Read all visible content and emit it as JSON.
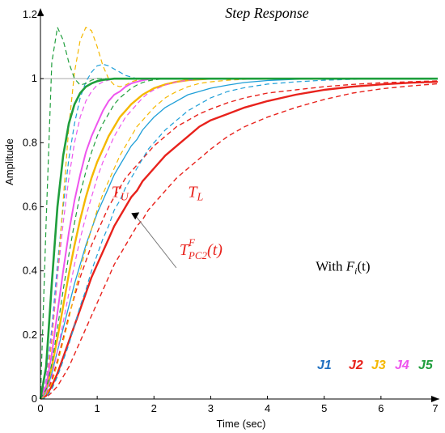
{
  "chart_data": {
    "type": "line",
    "title": "Step Response",
    "xlabel": "Time (sec)",
    "ylabel": "Amplitude",
    "xlim": [
      0,
      7
    ],
    "ylim": [
      0,
      1.2
    ],
    "xticks": [
      "0",
      "1",
      "2",
      "3",
      "4",
      "5",
      "6",
      "7"
    ],
    "yticks": [
      "0",
      "0.2",
      "0.4",
      "0.6",
      "0.8",
      "1",
      "1.2"
    ],
    "grid": false,
    "reference_line": 1,
    "annotations": {
      "tu": {
        "base": "T",
        "sub": "U",
        "x": 1.25,
        "y": 0.63
      },
      "tl": {
        "base": "T",
        "sub": "L",
        "x": 2.6,
        "y": 0.63
      },
      "tpc2": {
        "base": "T",
        "sup": "F",
        "sub": "PC2",
        "tail": "(t)",
        "x": 2.45,
        "y": 0.45,
        "arrow_to": [
          1.6,
          0.58
        ]
      },
      "with_fi": {
        "prefix": "With ",
        "base": "F",
        "sub": "i",
        "tail": "(t)",
        "x": 4.85,
        "y": 0.4
      }
    },
    "legend": {
      "position": "bottom-right",
      "entries": [
        {
          "label": "J1",
          "color": "#1f6fc0"
        },
        {
          "label": "J2",
          "color": "#e8221c"
        },
        {
          "label": "J3",
          "color": "#f5b800"
        },
        {
          "label": "J4",
          "color": "#ee55ee"
        },
        {
          "label": "J5",
          "color": "#1f9e3c"
        }
      ]
    },
    "x": [
      0,
      0.1,
      0.2,
      0.3,
      0.4,
      0.5,
      0.6,
      0.7,
      0.8,
      0.9,
      1.0,
      1.1,
      1.2,
      1.3,
      1.4,
      1.5,
      1.6,
      1.7,
      1.8,
      1.9,
      2.0,
      2.2,
      2.4,
      2.6,
      2.8,
      3.0,
      3.3,
      3.6,
      4.0,
      4.5,
      5.0,
      5.5,
      6.0,
      6.5,
      7.0
    ],
    "series": [
      {
        "color": "#e8221c",
        "style": "solid",
        "width": 2.4,
        "values": [
          0,
          0.01,
          0.04,
          0.08,
          0.13,
          0.18,
          0.23,
          0.28,
          0.33,
          0.38,
          0.42,
          0.46,
          0.5,
          0.54,
          0.57,
          0.6,
          0.63,
          0.65,
          0.68,
          0.7,
          0.72,
          0.76,
          0.79,
          0.82,
          0.85,
          0.87,
          0.89,
          0.91,
          0.93,
          0.95,
          0.965,
          0.975,
          0.982,
          0.987,
          0.99
        ]
      },
      {
        "color": "#e8221c",
        "style": "dashed",
        "width": 1.4,
        "values": [
          0,
          0.01,
          0.06,
          0.12,
          0.19,
          0.26,
          0.32,
          0.38,
          0.43,
          0.48,
          0.52,
          0.56,
          0.6,
          0.63,
          0.66,
          0.69,
          0.71,
          0.73,
          0.75,
          0.77,
          0.79,
          0.82,
          0.85,
          0.87,
          0.89,
          0.905,
          0.925,
          0.94,
          0.955,
          0.965,
          0.975,
          0.982,
          0.987,
          0.99,
          0.993
        ]
      },
      {
        "color": "#e8221c",
        "style": "dashed",
        "width": 1.4,
        "values": [
          0,
          0.005,
          0.02,
          0.04,
          0.07,
          0.1,
          0.14,
          0.18,
          0.22,
          0.26,
          0.3,
          0.34,
          0.38,
          0.42,
          0.45,
          0.48,
          0.51,
          0.54,
          0.56,
          0.59,
          0.61,
          0.65,
          0.69,
          0.72,
          0.75,
          0.78,
          0.82,
          0.85,
          0.88,
          0.91,
          0.935,
          0.955,
          0.968,
          0.977,
          0.984
        ]
      },
      {
        "color": "#1f9fd8",
        "style": "solid",
        "width": 1.3,
        "values": [
          0,
          0.02,
          0.08,
          0.15,
          0.22,
          0.29,
          0.36,
          0.42,
          0.48,
          0.53,
          0.58,
          0.62,
          0.66,
          0.7,
          0.73,
          0.76,
          0.79,
          0.81,
          0.84,
          0.86,
          0.88,
          0.91,
          0.93,
          0.95,
          0.96,
          0.97,
          0.98,
          0.988,
          0.994,
          0.998,
          1.0,
          1.0,
          1.0,
          1.0,
          1.0
        ]
      },
      {
        "color": "#1f9fd8",
        "style": "dashed",
        "width": 1.2,
        "values": [
          0,
          0.06,
          0.22,
          0.42,
          0.6,
          0.75,
          0.86,
          0.94,
          0.99,
          1.02,
          1.04,
          1.045,
          1.04,
          1.03,
          1.02,
          1.01,
          1.005,
          1.0,
          1.0,
          1.0,
          1.0,
          1.0,
          1.0,
          1.0,
          1.0,
          1.0,
          1.0,
          1.0,
          1.0,
          1.0,
          1.0,
          1.0,
          1.0,
          1.0,
          1.0
        ]
      },
      {
        "color": "#1f9fd8",
        "style": "dashed",
        "width": 1.2,
        "values": [
          0,
          0.005,
          0.03,
          0.07,
          0.12,
          0.17,
          0.23,
          0.29,
          0.34,
          0.4,
          0.45,
          0.5,
          0.54,
          0.59,
          0.62,
          0.66,
          0.69,
          0.72,
          0.75,
          0.78,
          0.8,
          0.84,
          0.87,
          0.9,
          0.92,
          0.94,
          0.96,
          0.972,
          0.983,
          0.99,
          0.995,
          0.998,
          1.0,
          1.0,
          1.0
        ]
      },
      {
        "color": "#f5b800",
        "style": "solid",
        "width": 2.4,
        "values": [
          0,
          0.03,
          0.1,
          0.19,
          0.29,
          0.39,
          0.48,
          0.56,
          0.63,
          0.69,
          0.74,
          0.78,
          0.82,
          0.85,
          0.88,
          0.9,
          0.92,
          0.935,
          0.95,
          0.96,
          0.97,
          0.982,
          0.99,
          0.995,
          0.998,
          1.0,
          1.0,
          1.0,
          1.0,
          1.0,
          1.0,
          1.0,
          1.0,
          1.0,
          1.0
        ]
      },
      {
        "color": "#f5b800",
        "style": "dashed",
        "width": 1.2,
        "values": [
          0,
          0.04,
          0.18,
          0.38,
          0.62,
          0.85,
          1.02,
          1.12,
          1.16,
          1.15,
          1.1,
          1.04,
          1.0,
          0.98,
          0.975,
          0.98,
          0.99,
          0.995,
          1.0,
          1.0,
          1.0,
          1.0,
          1.0,
          1.0,
          1.0,
          1.0,
          1.0,
          1.0,
          1.0,
          1.0,
          1.0,
          1.0,
          1.0,
          1.0,
          1.0
        ]
      },
      {
        "color": "#f5b800",
        "style": "dashed",
        "width": 1.2,
        "values": [
          0,
          0.01,
          0.05,
          0.11,
          0.18,
          0.25,
          0.33,
          0.4,
          0.47,
          0.53,
          0.59,
          0.64,
          0.68,
          0.72,
          0.76,
          0.79,
          0.82,
          0.85,
          0.87,
          0.89,
          0.91,
          0.94,
          0.96,
          0.975,
          0.985,
          0.99,
          0.995,
          0.998,
          1.0,
          1.0,
          1.0,
          1.0,
          1.0,
          1.0,
          1.0
        ]
      },
      {
        "color": "#ee55ee",
        "style": "solid",
        "width": 2.0,
        "values": [
          0,
          0.04,
          0.14,
          0.27,
          0.4,
          0.52,
          0.62,
          0.7,
          0.77,
          0.82,
          0.86,
          0.9,
          0.93,
          0.95,
          0.96,
          0.975,
          0.985,
          0.99,
          0.995,
          0.998,
          1.0,
          1.0,
          1.0,
          1.0,
          1.0,
          1.0,
          1.0,
          1.0,
          1.0,
          1.0,
          1.0,
          1.0,
          1.0,
          1.0,
          1.0
        ]
      },
      {
        "color": "#ee55ee",
        "style": "dashed",
        "width": 1.2,
        "values": [
          0,
          0.06,
          0.2,
          0.38,
          0.55,
          0.69,
          0.8,
          0.88,
          0.93,
          0.96,
          0.98,
          0.99,
          0.995,
          1.0,
          1.0,
          1.0,
          1.0,
          1.0,
          1.0,
          1.0,
          1.0,
          1.0,
          1.0,
          1.0,
          1.0,
          1.0,
          1.0,
          1.0,
          1.0,
          1.0,
          1.0,
          1.0,
          1.0,
          1.0,
          1.0
        ]
      },
      {
        "color": "#ee55ee",
        "style": "dashed",
        "width": 1.2,
        "values": [
          0,
          0.02,
          0.07,
          0.15,
          0.24,
          0.33,
          0.42,
          0.5,
          0.57,
          0.63,
          0.69,
          0.74,
          0.78,
          0.82,
          0.85,
          0.88,
          0.9,
          0.92,
          0.94,
          0.955,
          0.965,
          0.98,
          0.99,
          0.995,
          0.998,
          1.0,
          1.0,
          1.0,
          1.0,
          1.0,
          1.0,
          1.0,
          1.0,
          1.0,
          1.0
        ]
      },
      {
        "color": "#1f9e3c",
        "style": "solid",
        "width": 2.6,
        "values": [
          0,
          0.1,
          0.36,
          0.6,
          0.76,
          0.86,
          0.92,
          0.955,
          0.975,
          0.985,
          0.992,
          0.996,
          0.998,
          1.0,
          1.0,
          1.0,
          1.0,
          1.0,
          1.0,
          1.0,
          1.0,
          1.0,
          1.0,
          1.0,
          1.0,
          1.0,
          1.0,
          1.0,
          1.0,
          1.0,
          1.0,
          1.0,
          1.0,
          1.0,
          1.0
        ]
      },
      {
        "color": "#1f9e3c",
        "style": "dashed",
        "width": 1.2,
        "values": [
          0,
          0.55,
          1.05,
          1.16,
          1.12,
          1.05,
          1.0,
          0.98,
          0.985,
          0.995,
          1.0,
          1.0,
          1.0,
          1.0,
          1.0,
          1.0,
          1.0,
          1.0,
          1.0,
          1.0,
          1.0,
          1.0,
          1.0,
          1.0,
          1.0,
          1.0,
          1.0,
          1.0,
          1.0,
          1.0,
          1.0,
          1.0,
          1.0,
          1.0,
          1.0
        ]
      },
      {
        "color": "#1f9e3c",
        "style": "dashed",
        "width": 1.2,
        "values": [
          0,
          0.03,
          0.11,
          0.22,
          0.34,
          0.45,
          0.55,
          0.64,
          0.71,
          0.77,
          0.82,
          0.86,
          0.89,
          0.92,
          0.94,
          0.955,
          0.97,
          0.98,
          0.988,
          0.993,
          0.996,
          1.0,
          1.0,
          1.0,
          1.0,
          1.0,
          1.0,
          1.0,
          1.0,
          1.0,
          1.0,
          1.0,
          1.0,
          1.0,
          1.0
        ]
      }
    ]
  }
}
